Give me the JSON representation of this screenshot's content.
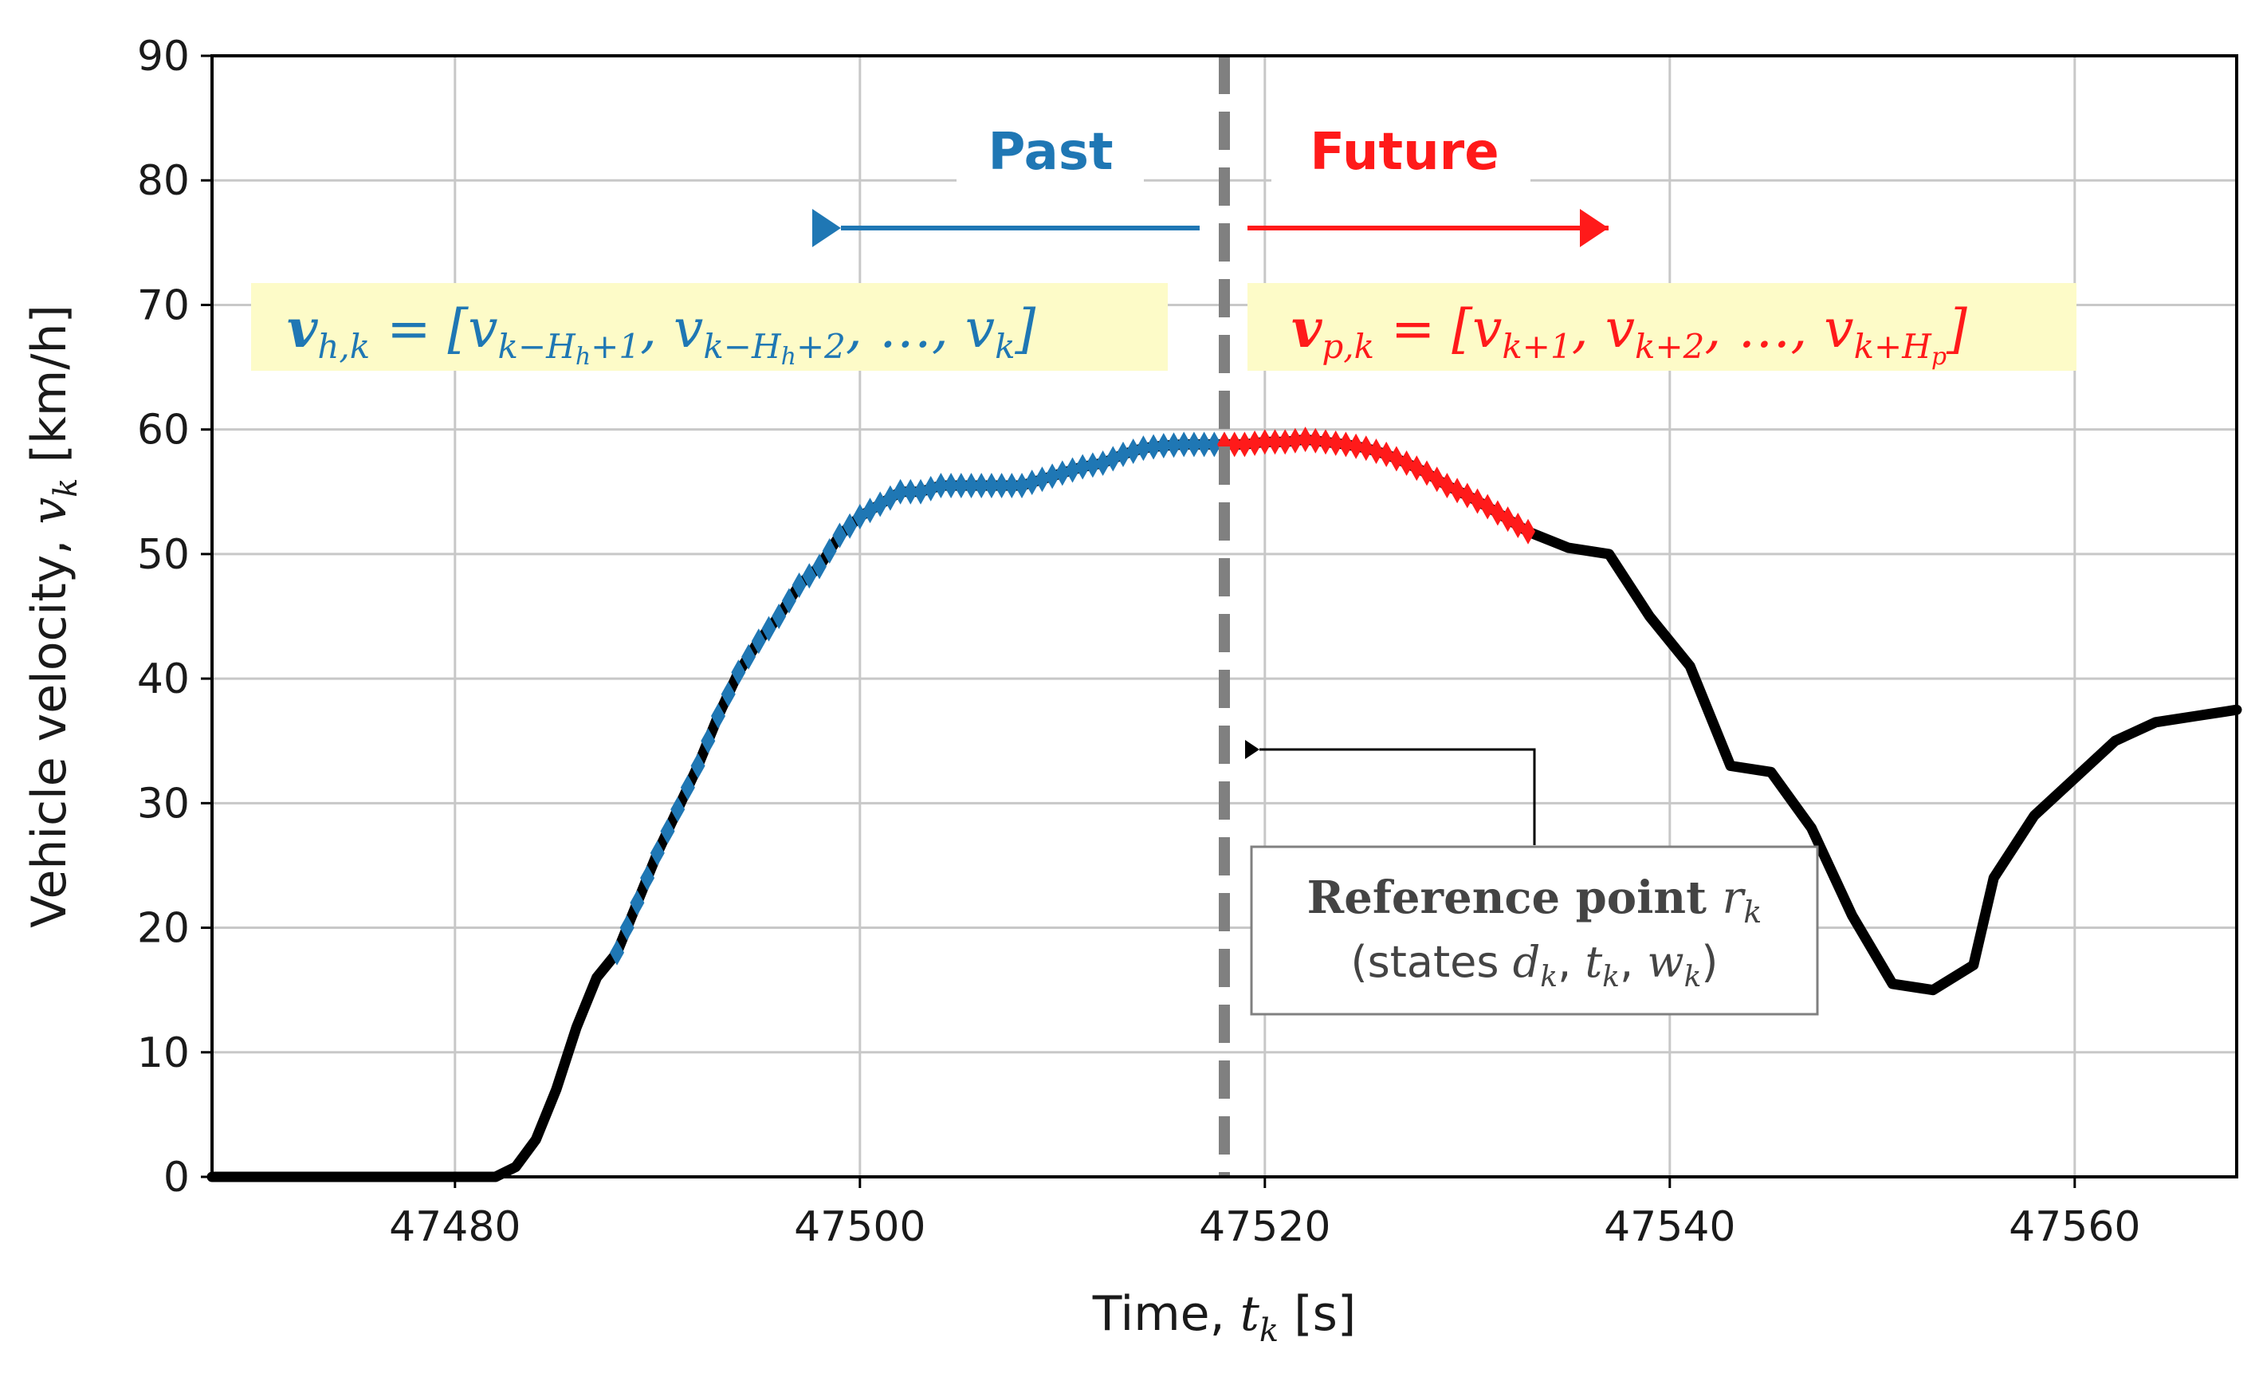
{
  "chart_data": {
    "type": "line",
    "xlabel": "Time, t_k [s]",
    "xlabel_prefix": "Time,",
    "xlabel_var": "t",
    "xlabel_sub": "k",
    "xlabel_unit": "[s]",
    "ylabel": "Vehicle velocity, v_k [km/h]",
    "ylabel_prefix": "Vehicle velocity,",
    "ylabel_var": "v",
    "ylabel_sub": "k",
    "ylabel_unit": "[km/h]",
    "xlim": [
      47468,
      47568
    ],
    "ylim": [
      0,
      90
    ],
    "xticks": [
      47480,
      47500,
      47520,
      47540,
      47560
    ],
    "yticks": [
      0,
      10,
      20,
      30,
      40,
      50,
      60,
      70,
      80,
      90
    ],
    "grid": true,
    "reference_time": 47518,
    "series": [
      {
        "name": "velocity",
        "color": "#000000",
        "x": [
          47468,
          47482,
          47483,
          47484,
          47485,
          47486,
          47487,
          47488,
          47489,
          47490,
          47491,
          47492,
          47493,
          47494,
          47495,
          47496,
          47497,
          47498,
          47499,
          47500,
          47501,
          47502,
          47503,
          47504,
          47505,
          47506,
          47507,
          47508,
          47509,
          47510,
          47511,
          47512,
          47513,
          47514,
          47515,
          47516,
          47517,
          47518,
          47519,
          47520,
          47521,
          47522,
          47523,
          47524,
          47525,
          47526,
          47527,
          47528,
          47529,
          47530,
          47531,
          47532,
          47533,
          47535,
          47537,
          47539,
          47541,
          47543,
          47545,
          47547,
          47549,
          47551,
          47553,
          47555,
          47556,
          47558,
          47560,
          47562,
          47564,
          47566,
          47568
        ],
        "y": [
          0,
          0,
          0.8,
          3,
          7,
          12,
          16,
          18,
          22,
          26,
          29.5,
          33,
          37,
          40.5,
          43,
          45,
          47.5,
          49,
          51.5,
          53,
          54,
          55,
          55,
          55.5,
          55.5,
          55.5,
          55.5,
          55.5,
          56,
          56.5,
          57,
          57.3,
          58,
          58.5,
          58.7,
          58.8,
          58.8,
          58.8,
          58.8,
          59,
          59,
          59.2,
          59,
          58.8,
          58.5,
          58,
          57.3,
          56.5,
          55.5,
          54.7,
          53.8,
          52.8,
          51.8,
          50.5,
          50,
          45,
          41,
          33,
          32.5,
          28,
          21,
          15.5,
          15,
          17,
          24,
          29,
          32,
          35,
          36.5,
          37,
          37.5
        ]
      }
    ],
    "past_segment": {
      "name": "Past",
      "color": "#1f77b4",
      "x_range": [
        47488,
        47518
      ]
    },
    "future_segment": {
      "name": "Future",
      "color": "#ff1a1a",
      "x_range": [
        47518,
        47533
      ]
    },
    "annotations": {
      "past_label": "Past",
      "future_label": "Future",
      "past_equation": "v_{h,k} = [v_{k−H_h+1}, v_{k−H_h+2}, …, v_k]",
      "future_equation": "v_{p,k} = [v_{k+1}, v_{k+2}, …, v_{k+H_p}]",
      "reference_title": "Reference point r_k",
      "reference_title_text": "Reference point",
      "reference_title_var": "r",
      "reference_title_sub": "k",
      "reference_sub_open": "(states",
      "reference_sub_d": "d",
      "reference_sub_t": "t",
      "reference_sub_w": "w",
      "reference_sub_k": "k",
      "reference_sub_close": ")",
      "reference_subtitle": "(states d_k, t_k, w_k)"
    },
    "colors": {
      "past": "#1f77b4",
      "future": "#ff1a1a",
      "line": "#000000",
      "reference": "#808080",
      "grid": "#c8c8c8",
      "eq_background": "#fdfbc8"
    }
  }
}
